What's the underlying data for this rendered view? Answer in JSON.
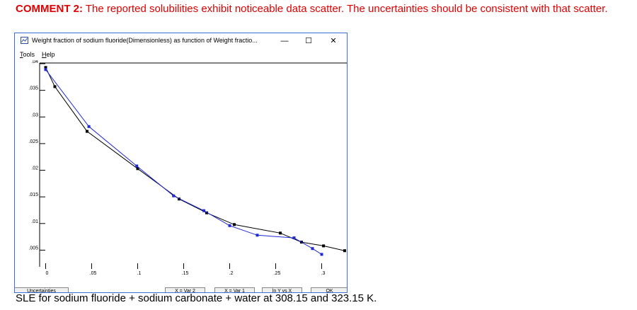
{
  "comment": {
    "label": "COMMENT 2:",
    "text": " The reported solubilities exhibit noticeable data scatter. The uncertainties should be consistent with that scatter."
  },
  "window": {
    "title": "Weight fraction of sodium fluoride(Dimensionless) as function of Weight fractio...",
    "minimize": "—",
    "maximize": "☐",
    "close": "✕",
    "menu": [
      {
        "label": "Tools",
        "accel": "T",
        "rest": "ools"
      },
      {
        "label": "Help",
        "accel": "H",
        "rest": "elp"
      }
    ],
    "buttons": {
      "uncertainties": "Uncertainties",
      "x_var2": "X = Var 2",
      "x_var1": "X = Var 1",
      "lny_vs_x": "ln Y vs X",
      "ok": "OK"
    }
  },
  "chart_data": {
    "type": "line",
    "xlim": [
      -0.005,
      0.325
    ],
    "ylim": [
      0.002,
      0.04
    ],
    "x_ticks": [
      "0",
      ".05",
      ".1",
      ".15",
      ".2",
      ".25",
      ".3"
    ],
    "x_tick_values": [
      0,
      0.05,
      0.1,
      0.15,
      0.2,
      0.25,
      0.3
    ],
    "y_ticks": [
      ".005",
      ".01",
      ".015",
      ".02",
      ".025",
      ".03",
      ".035",
      ".04"
    ],
    "y_tick_values": [
      0.005,
      0.01,
      0.015,
      0.02,
      0.025,
      0.03,
      0.035,
      0.04
    ],
    "series": [
      {
        "color": "#000000",
        "x": [
          0.0,
          0.01,
          0.045,
          0.1,
          0.145,
          0.175,
          0.205,
          0.255,
          0.278,
          0.302,
          0.325
        ],
        "y": [
          0.0393,
          0.0357,
          0.0273,
          0.0203,
          0.0146,
          0.012,
          0.0098,
          0.0082,
          0.0065,
          0.0058,
          0.0049
        ]
      },
      {
        "color": "#1f2ad6",
        "x": [
          0.0,
          0.047,
          0.099,
          0.139,
          0.172,
          0.2,
          0.23,
          0.27,
          0.29,
          0.3
        ],
        "y": [
          0.0389,
          0.0282,
          0.0208,
          0.0152,
          0.0124,
          0.0096,
          0.0078,
          0.0073,
          0.0053,
          0.0042
        ]
      }
    ]
  },
  "caption": "SLE for sodium fluoride + sodium carbonate + water at 308.15 and 323.15 K."
}
